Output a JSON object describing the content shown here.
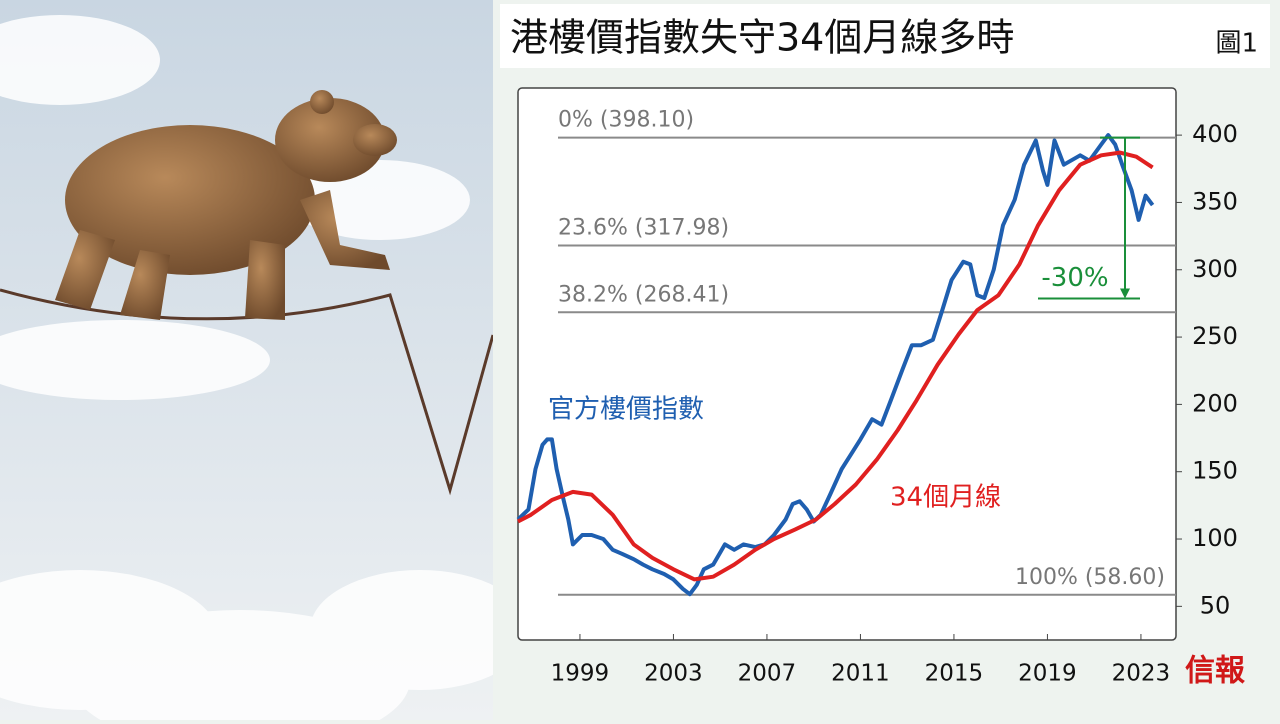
{
  "chart_data": {
    "type": "line",
    "title": "港樓價指數失守34個月線多時",
    "figure_label": "圖1",
    "source": "信報",
    "xlim": [
      1996.35,
      2024.5
    ],
    "xticks": [
      1999,
      2003,
      2007,
      2011,
      2015,
      2019,
      2023
    ],
    "ylim": [
      25,
      435
    ],
    "yticks": [
      50,
      100,
      150,
      200,
      250,
      300,
      350,
      400
    ],
    "levels": [
      {
        "value": 398.1,
        "label": "0% (398.10)"
      },
      {
        "value": 317.98,
        "label": "23.6% (317.98)"
      },
      {
        "value": 268.41,
        "label": "38.2% (268.41)"
      },
      {
        "value": 58.6,
        "label": "100% (58.60)"
      }
    ],
    "drop": {
      "value": -30,
      "label": "-30%",
      "color": "#1a8f3a"
    },
    "series": [
      {
        "name": "官方樓價指數",
        "color": "#1f5fb0",
        "x": [
          1996.35,
          1996.8,
          1997.1,
          1997.4,
          1997.6,
          1997.8,
          1998.0,
          1998.3,
          1998.5,
          1998.7,
          1999.1,
          1999.5,
          2000.0,
          2000.4,
          2000.8,
          2001.3,
          2001.7,
          2002.1,
          2002.6,
          2003.0,
          2003.4,
          2003.7,
          2004.0,
          2004.3,
          2004.7,
          2005.2,
          2005.6,
          2006.0,
          2006.5,
          2006.9,
          2007.3,
          2007.8,
          2008.1,
          2008.4,
          2008.7,
          2009.0,
          2009.3,
          2009.7,
          2010.2,
          2010.6,
          2011.0,
          2011.5,
          2011.9,
          2012.3,
          2012.8,
          2013.2,
          2013.6,
          2014.1,
          2014.5,
          2014.9,
          2015.4,
          2015.7,
          2016.0,
          2016.3,
          2016.7,
          2017.1,
          2017.6,
          2018.0,
          2018.5,
          2018.8,
          2019.0,
          2019.3,
          2019.7,
          2020.0,
          2020.4,
          2020.8,
          2021.3,
          2021.6,
          2021.9,
          2022.2,
          2022.6,
          2022.9,
          2023.2,
          2023.5
        ],
        "values": [
          114.5,
          122,
          152,
          170,
          174,
          174,
          152,
          129,
          114.5,
          96,
          103,
          103,
          100,
          92,
          89,
          85,
          81,
          77.5,
          74,
          70,
          63,
          59,
          66,
          77.5,
          81,
          96,
          92,
          96,
          94,
          96,
          103,
          114.5,
          126,
          128,
          122,
          113,
          118,
          133,
          152,
          163,
          174,
          189,
          185,
          203,
          226,
          244,
          244,
          248,
          270,
          292.5,
          306,
          304,
          281,
          279,
          300,
          333,
          352,
          378,
          396,
          374,
          363,
          396,
          378,
          381,
          385,
          381,
          393,
          400,
          393,
          378,
          359,
          337,
          355,
          348
        ]
      },
      {
        "name": "34個月線",
        "color": "#e02020",
        "x": [
          1996.35,
          1996.9,
          1997.8,
          1998.7,
          1999.5,
          2000.4,
          2001.3,
          2002.1,
          2003.0,
          2003.9,
          2004.7,
          2005.6,
          2006.5,
          2007.3,
          2008.2,
          2009.1,
          2009.9,
          2010.8,
          2011.7,
          2012.6,
          2013.4,
          2014.3,
          2015.2,
          2016.0,
          2016.9,
          2017.8,
          2018.6,
          2019.5,
          2020.4,
          2021.3,
          2022.1,
          2022.8,
          2023.5
        ],
        "values": [
          113,
          118,
          129,
          135,
          133,
          118,
          96,
          86,
          77.5,
          70,
          72,
          81,
          92,
          100,
          107,
          114.5,
          126,
          140.5,
          159,
          181,
          203,
          229.5,
          252,
          270,
          281,
          304,
          333,
          359,
          378,
          385,
          387,
          384,
          376
        ]
      }
    ]
  }
}
